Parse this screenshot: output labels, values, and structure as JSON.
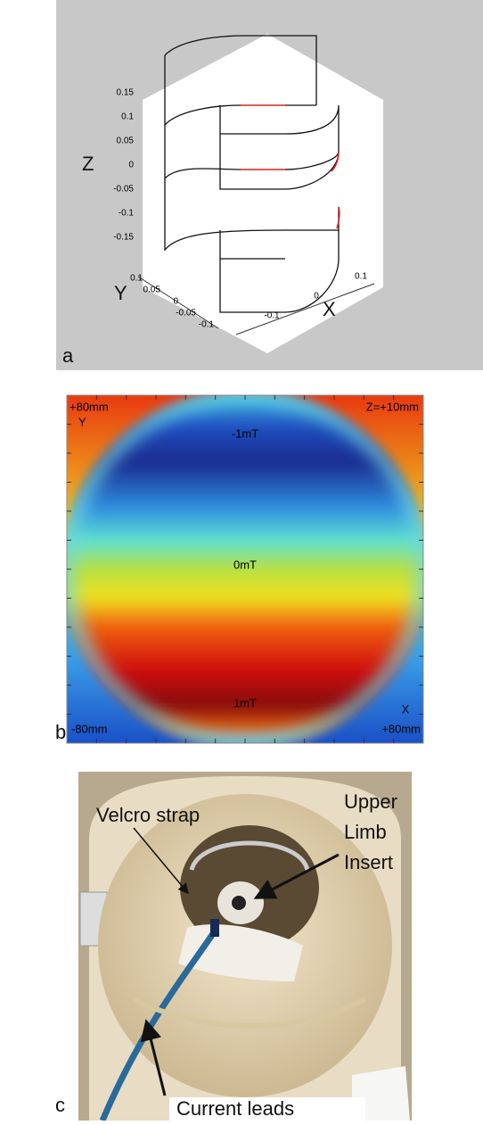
{
  "panels": [
    {
      "label": "a",
      "axes": {
        "z": {
          "title": "Z",
          "ticks": [
            0.15,
            0.1,
            0.05,
            0,
            -0.05,
            -0.1,
            -0.15
          ]
        },
        "y": {
          "title": "Y",
          "ticks": [
            0.1,
            0.05,
            0,
            -0.05,
            -0.1
          ]
        },
        "x": {
          "title": "X",
          "ticks": [
            0.1,
            0,
            -0.1
          ]
        }
      }
    },
    {
      "label": "b",
      "annotations": {
        "top_left": "+80mm",
        "y_axis": "Y",
        "top_right": "Z=+10mm",
        "top_field": "-1mT",
        "mid_field": "0mT",
        "bottom_field": "1mT",
        "x_axis": "X",
        "bottom_left": "-80mm",
        "bottom_right": "+80mm"
      }
    },
    {
      "label": "c",
      "annotations": {
        "strap": "Velcro strap",
        "insert": [
          "Upper",
          "Limb",
          "Insert"
        ],
        "leads": "Current leads"
      }
    }
  ]
}
